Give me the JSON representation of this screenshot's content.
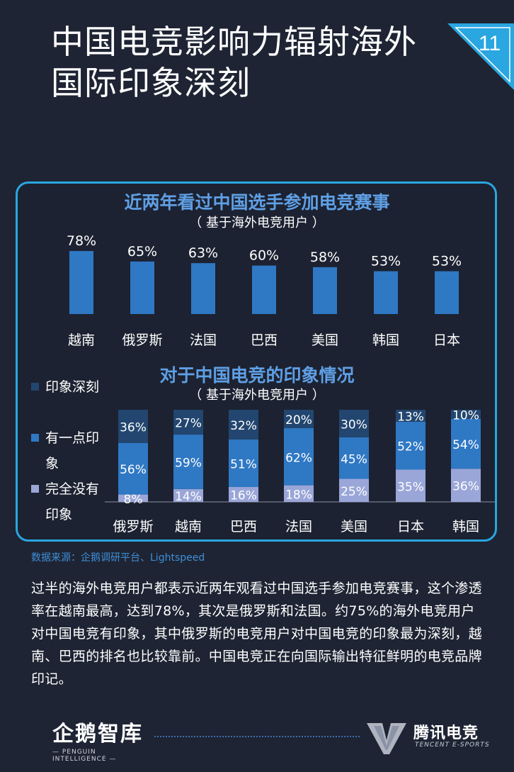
{
  "header": {
    "title_line1": "中国电竞影响力辐射海外",
    "title_line2": "国际印象深刻",
    "page_number": "11"
  },
  "colors": {
    "background": "#1e2433",
    "accent_blue": "#2aa6e0",
    "bar_blue": "#2f78c4",
    "deep": "#22466f",
    "some": "#2f78c4",
    "none": "#9aa6d8",
    "title_blue": "#5f9fe4"
  },
  "chart_data": [
    {
      "type": "bar",
      "title": "近两年看过中国选手参加电竞赛事",
      "subtitle": "（ 基于海外电竞用户 ）",
      "categories": [
        "越南",
        "俄罗斯",
        "法国",
        "巴西",
        "美国",
        "韩国",
        "日本"
      ],
      "values": [
        78,
        65,
        63,
        60,
        58,
        53,
        53
      ],
      "value_labels": [
        "78%",
        "65%",
        "63%",
        "60%",
        "58%",
        "53%",
        "53%"
      ],
      "ylim": [
        0,
        100
      ],
      "grid": false
    },
    {
      "type": "bar",
      "stacked": true,
      "title": "对于中国电竞的印象情况",
      "subtitle": "（ 基于海外电竞用户 ）",
      "categories": [
        "俄罗斯",
        "越南",
        "巴西",
        "法国",
        "美国",
        "日本",
        "韩国"
      ],
      "series": [
        {
          "name": "完全没有印象",
          "values": [
            8,
            14,
            16,
            18,
            25,
            35,
            36
          ],
          "labels": [
            "8%",
            "14%",
            "16%",
            "18%",
            "25%",
            "35%",
            "36%"
          ]
        },
        {
          "name": "有一点印象",
          "values": [
            56,
            59,
            51,
            62,
            45,
            52,
            54
          ],
          "labels": [
            "56%",
            "59%",
            "51%",
            "62%",
            "45%",
            "52%",
            "54%"
          ]
        },
        {
          "name": "印象深刻",
          "values": [
            36,
            27,
            32,
            20,
            30,
            13,
            10
          ],
          "labels": [
            "36%",
            "27%",
            "32%",
            "20%",
            "30%",
            "13%",
            "10%"
          ]
        }
      ],
      "legend": [
        "印象深刻",
        "有一点印象",
        "完全没有印象"
      ],
      "legend_position": "left",
      "ylim": [
        0,
        100
      ]
    }
  ],
  "legend_items": [
    {
      "label": "印象深刻"
    },
    {
      "label": "有一点印\n象"
    },
    {
      "label": "完全没有\n印象"
    }
  ],
  "source": "数据来源：企鹅调研平台、Lightspeed",
  "body_text": "过半的海外电竞用户都表示近两年观看过中国选手参加电竞赛事，这个渗透率在越南最高，达到78%，其次是俄罗斯和法国。约75%的海外电竞用户对中国电竞有印象，其中俄罗斯的电竞用户对中国电竞的印象最为深刻，越南、巴西的排名也比较靠前。中国电竞正在向国际输出特征鲜明的电竞品牌印记。",
  "footer": {
    "left_brand": "企鹅智库",
    "left_sub": "— PENGUIN INTELLIGENCE —",
    "right_brand": "腾讯电竞",
    "right_sub": "TENCENT E-SPORTS"
  }
}
